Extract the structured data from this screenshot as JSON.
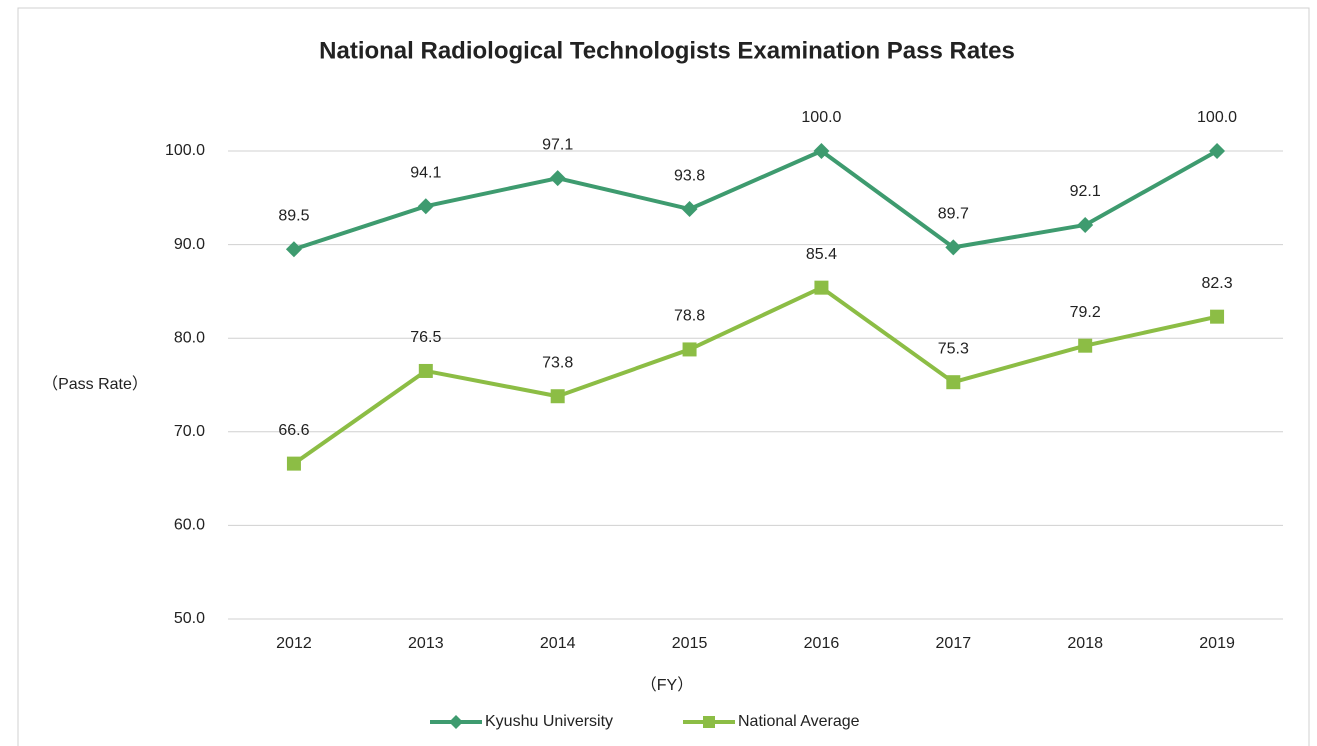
{
  "chart_data": {
    "type": "line",
    "title": "National Radiological Technologists Examination Pass Rates",
    "y_axis_label": "（Pass Rate）",
    "x_axis_label": "（FY）",
    "categories": [
      "2012",
      "2013",
      "2014",
      "2015",
      "2016",
      "2017",
      "2018",
      "2019"
    ],
    "series": [
      {
        "name": "Kyushu University",
        "color": "#3e9b6f",
        "marker": "diamond",
        "values": [
          89.5,
          94.1,
          97.1,
          93.8,
          100,
          89.7,
          92.1,
          100
        ],
        "value_labels": [
          "89.5",
          "94.1",
          "97.1",
          "93.8",
          "100.0",
          "89.7",
          "92.1",
          "100.0"
        ]
      },
      {
        "name": "National Average",
        "color": "#8cbd45",
        "marker": "square",
        "values": [
          66.6,
          76.5,
          73.8,
          78.8,
          85.4,
          75.3,
          79.2,
          82.3
        ],
        "value_labels": [
          "66.6",
          "76.5",
          "73.8",
          "78.8",
          "85.4",
          "75.3",
          "79.2",
          "82.3"
        ]
      }
    ],
    "ylim": [
      50,
      100
    ],
    "yticks": [
      {
        "value": 50,
        "label": "50.0"
      },
      {
        "value": 60,
        "label": "60.0"
      },
      {
        "value": 70,
        "label": "70.0"
      },
      {
        "value": 80,
        "label": "80.0"
      },
      {
        "value": 90,
        "label": "90.0"
      },
      {
        "value": 100,
        "label": "100.0"
      }
    ],
    "grid": true,
    "legend": "bottom"
  }
}
